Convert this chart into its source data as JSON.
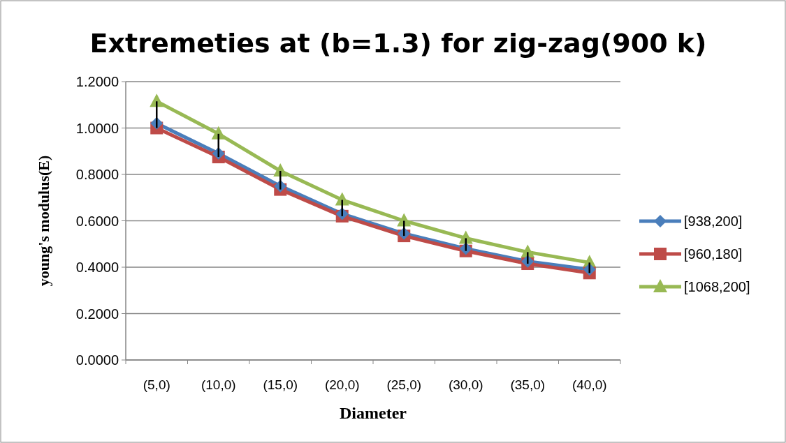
{
  "chart_data": {
    "type": "line",
    "title": "Extremeties at (b=1.3) for zig-zag(900 k)",
    "xlabel": "Diameter",
    "ylabel": "young's modulus(E)",
    "categories": [
      "(5,0)",
      "(10,0)",
      "(15,0)",
      "(20,0)",
      "(25,0)",
      "(30,0)",
      "(35,0)",
      "(40,0)"
    ],
    "series": [
      {
        "name": "[938,200]",
        "color": "#4a7ebb",
        "marker": "diamond",
        "values": [
          1.02,
          0.89,
          0.75,
          0.63,
          0.545,
          0.48,
          0.425,
          0.39
        ]
      },
      {
        "name": "[960,180]",
        "color": "#be4b48",
        "marker": "square",
        "values": [
          1.0,
          0.875,
          0.735,
          0.62,
          0.535,
          0.47,
          0.415,
          0.375
        ]
      },
      {
        "name": "[1068,200]",
        "color": "#98b954",
        "marker": "triangle",
        "values": [
          1.115,
          0.975,
          0.815,
          0.69,
          0.6,
          0.525,
          0.465,
          0.42
        ],
        "errors": [
          [
            1.0,
            1.115
          ],
          [
            0.875,
            0.975
          ],
          [
            0.735,
            0.815
          ],
          [
            0.62,
            0.69
          ],
          [
            0.535,
            0.6
          ],
          [
            0.47,
            0.525
          ],
          [
            0.415,
            0.465
          ],
          [
            0.375,
            0.42
          ]
        ]
      }
    ],
    "ylim": [
      0,
      1.2
    ],
    "yticks": [
      {
        "value": 0,
        "label": "0.0000"
      },
      {
        "value": 0.2,
        "label": "0.2000"
      },
      {
        "value": 0.4,
        "label": "0.4000"
      },
      {
        "value": 0.6,
        "label": "0.6000"
      },
      {
        "value": 0.8,
        "label": "0.8000"
      },
      {
        "value": 1,
        "label": "1.0000"
      },
      {
        "value": 1.2,
        "label": "1.2000"
      }
    ],
    "grid": "y",
    "legend": "right",
    "line_style": "solid"
  }
}
